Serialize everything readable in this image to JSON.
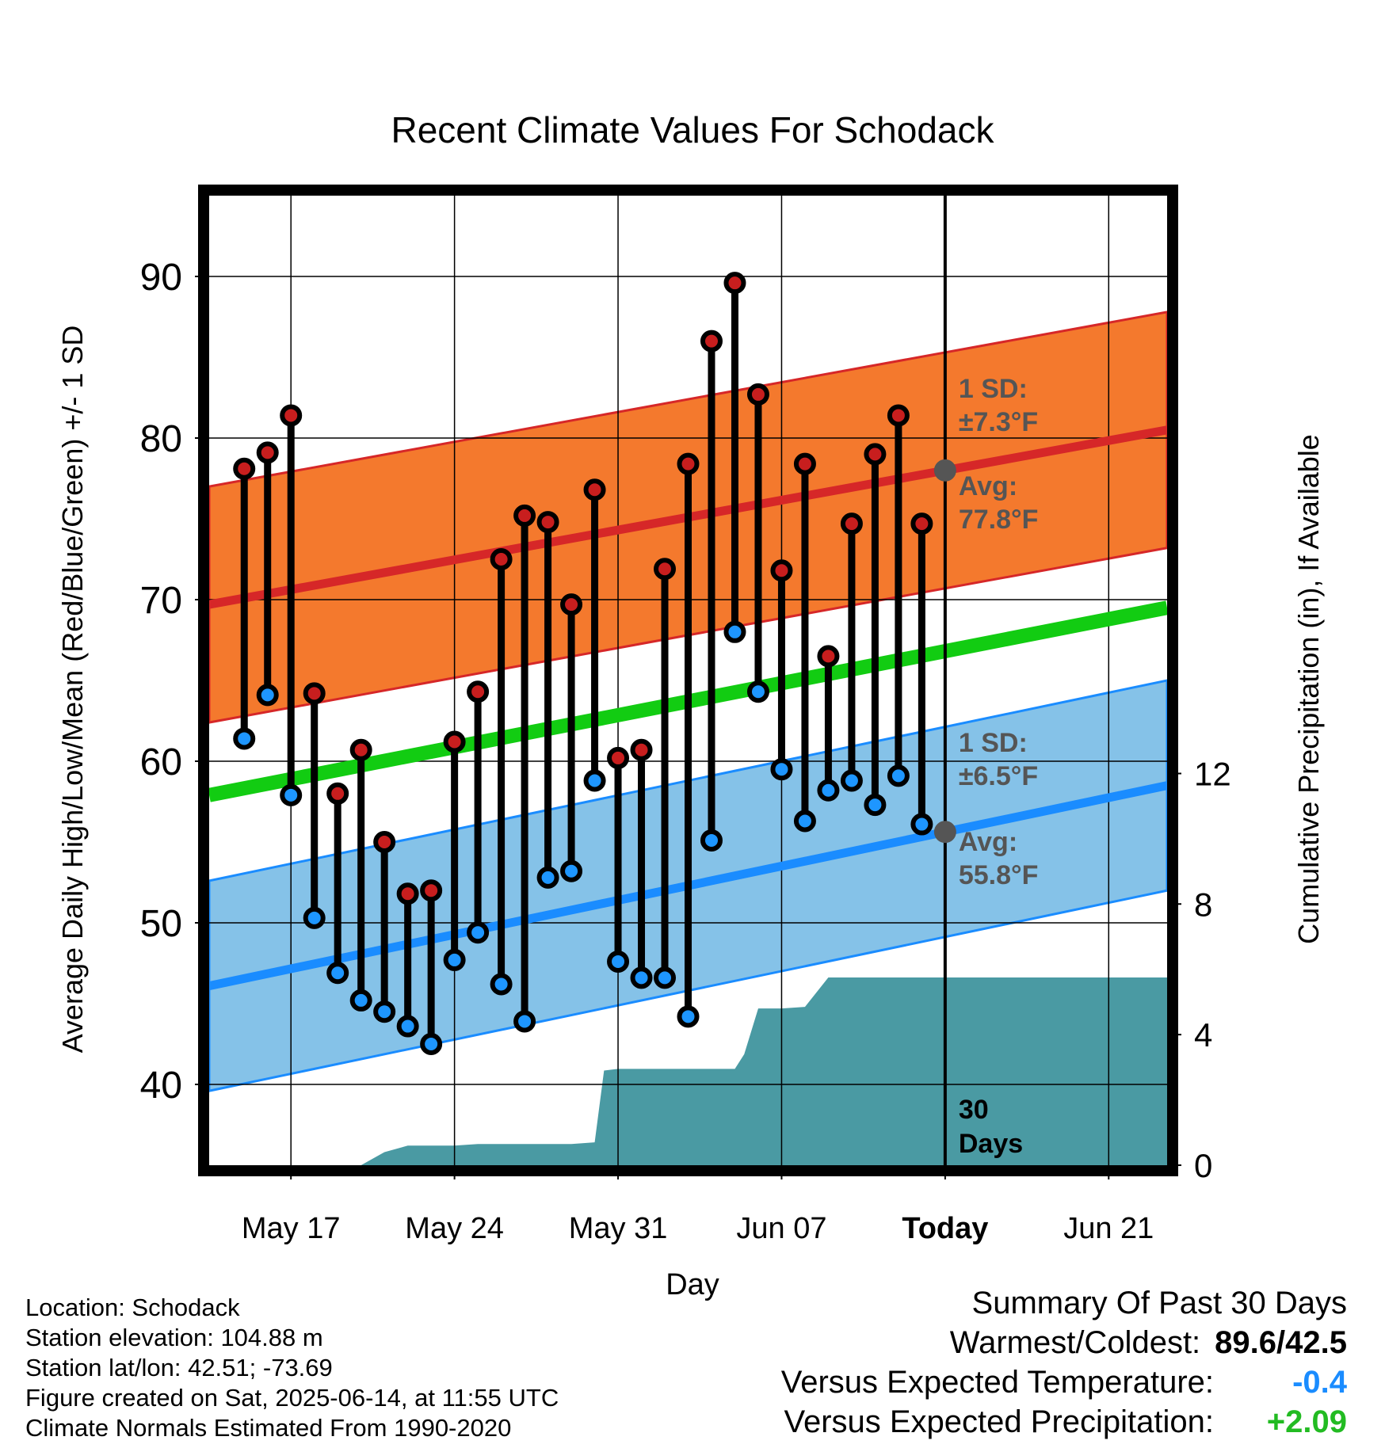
{
  "chart_data": {
    "type": "line",
    "title": "Recent Climate Values For Schodack",
    "xlabel": "Day",
    "ylabel_left": "Average Daily High/Low/Mean (Red/Blue/Green) +/- 1 SD",
    "ylabel_right": "Cumulative Precipitation (in), If Available",
    "x_start": "May 14",
    "today_index": 31,
    "x_range": [
      -0.5,
      40.5
    ],
    "y_left_range": [
      35,
      95
    ],
    "y_right_range": [
      0,
      29.7
    ],
    "x_ticks": [
      {
        "day": 3,
        "label": "May 17"
      },
      {
        "day": 10,
        "label": "May 24"
      },
      {
        "day": 17,
        "label": "May 31"
      },
      {
        "day": 24,
        "label": "Jun 07"
      },
      {
        "day": 31,
        "label": "Today"
      },
      {
        "day": 38,
        "label": "Jun 21"
      }
    ],
    "y_left_ticks": [
      40,
      50,
      60,
      70,
      80,
      90
    ],
    "y_right_ticks": [
      0,
      4,
      8,
      12
    ],
    "grid": true,
    "normals": {
      "high_avg": {
        "start": 69.7,
        "end": 80.5
      },
      "low_avg": {
        "start": 46.1,
        "end": 58.5
      },
      "mean_avg": {
        "start": 57.9,
        "end": 69.5
      },
      "high_sd": 7.3,
      "low_sd": 6.5
    },
    "daily": {
      "days": [
        1,
        2,
        3,
        4,
        5,
        6,
        7,
        8,
        9,
        10,
        11,
        12,
        13,
        14,
        15,
        16,
        17,
        18,
        19,
        20,
        21,
        22,
        23,
        24,
        25,
        26,
        27,
        28,
        29,
        30
      ],
      "highs": [
        78.1,
        79.1,
        81.4,
        64.2,
        58.0,
        60.7,
        55.0,
        51.8,
        52.0,
        61.2,
        64.3,
        72.5,
        75.2,
        74.8,
        69.7,
        76.8,
        60.2,
        60.7,
        71.9,
        78.4,
        86.0,
        89.6,
        82.7,
        71.8,
        78.4,
        66.5,
        74.7,
        79.0,
        81.4,
        74.7
      ],
      "lows": [
        61.4,
        64.1,
        57.9,
        50.3,
        46.9,
        45.2,
        44.5,
        43.6,
        42.5,
        47.7,
        49.4,
        46.2,
        43.9,
        52.8,
        53.2,
        58.8,
        47.6,
        46.6,
        46.6,
        44.2,
        55.1,
        68.0,
        64.3,
        59.5,
        56.3,
        58.2,
        58.8,
        57.3,
        59.1,
        56.1
      ]
    },
    "precip": {
      "x": [
        6.0,
        7.0,
        8.0,
        9.0,
        10.0,
        11.0,
        12.0,
        13.0,
        14.0,
        15.0,
        16.0,
        16.4,
        17.0,
        18.0,
        19.0,
        20.0,
        21.0,
        22.0,
        22.4,
        23.0,
        24.0,
        25.0,
        26.0,
        27.0,
        28.0,
        29.0,
        30.0,
        31.0,
        40.5
      ],
      "y": [
        0,
        0.4,
        0.6,
        0.6,
        0.6,
        0.65,
        0.65,
        0.65,
        0.65,
        0.65,
        0.7,
        2.9,
        2.95,
        2.95,
        2.95,
        2.95,
        2.95,
        2.95,
        3.4,
        4.8,
        4.8,
        4.85,
        5.75,
        5.75,
        5.75,
        5.75,
        5.75,
        5.75,
        5.75
      ]
    },
    "annotations": {
      "high_sd_label_1": "1 SD:",
      "high_sd_label_2": "±7.3°F",
      "high_avg_label_1": "Avg:",
      "high_avg_label_2": "77.8°F",
      "low_sd_label_1": "1 SD:",
      "low_sd_label_2": "±6.5°F",
      "low_avg_label_1": "Avg:",
      "low_avg_label_2": "55.8°F",
      "days_label_1": "30",
      "days_label_2": "Days"
    },
    "colors": {
      "high_band": "#f4792d",
      "high_line": "#d62728",
      "low_band": "#85c2e8",
      "low_line": "#1a8cff",
      "mean_line": "#12cc12",
      "precip": "#4a9aa3",
      "high_marker": "#c81e1e",
      "low_marker": "#1e96ff",
      "annotation": "#555555"
    }
  },
  "footer": {
    "location": "Location: Schodack",
    "elevation": "Station elevation: 104.88 m",
    "latlon": "Station lat/lon: 42.51; -73.69",
    "created": "Figure created on Sat, 2025-06-14, at 11:55 UTC",
    "normals": "Climate Normals Estimated From 1990-2020"
  },
  "summary": {
    "title": "Summary Of Past 30 Days",
    "warmest_label": "Warmest/Coldest:",
    "warmest_value": "89.6/42.5",
    "temp_label": "Versus Expected Temperature:",
    "temp_value": "-0.4",
    "temp_color": "#1a8cff",
    "precip_label": "Versus Expected Precipitation:",
    "precip_value": "+2.09",
    "precip_color": "#22bb22"
  }
}
